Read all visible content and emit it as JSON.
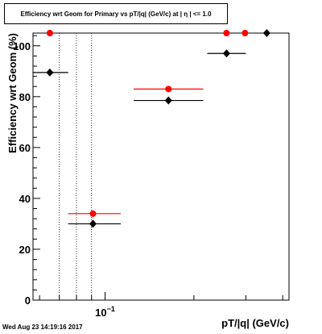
{
  "canvas": {
    "title": "Efficiency wrt Geom for Primary vs pT/|q| (GeV/c) at | η | <= 1.0",
    "timestamp": "Wed Aug 23 14:19:16 2017"
  },
  "chart_data": {
    "type": "scatter",
    "title": "Efficiency wrt Geom for Primary vs pT/|q| (GeV/c) at | η | <= 1.0",
    "xlabel": "pT/|q| (GeV/c)",
    "ylabel": "Efficiency wrt Geom (%)",
    "xscale": "log",
    "xlim": [
      0.057,
      0.42
    ],
    "ylim": [
      0,
      105
    ],
    "x_tick_labels": [
      {
        "base": "10",
        "exp": "−1",
        "value": 0.1
      }
    ],
    "x_gridlines": [
      0.07,
      0.08,
      0.09
    ],
    "y_ticks": [
      0,
      20,
      40,
      60,
      80,
      100
    ],
    "grid": false,
    "legend": "none",
    "series": [
      {
        "color": "#ff0000",
        "marker": "circle",
        "points": [
          {
            "x": 0.065,
            "y": 105,
            "xlo": 0.065,
            "xhi": 0.065
          },
          {
            "x": 0.091,
            "y": 34,
            "xlo": 0.075,
            "xhi": 0.113
          },
          {
            "x": 0.164,
            "y": 83,
            "xlo": 0.125,
            "xhi": 0.215
          },
          {
            "x": 0.258,
            "y": 105,
            "xlo": 0.258,
            "xhi": 0.258
          },
          {
            "x": 0.298,
            "y": 105,
            "xlo": 0.298,
            "xhi": 0.298
          }
        ]
      },
      {
        "color": "#000000",
        "marker": "diamond",
        "points": [
          {
            "x": 0.065,
            "y": 89.5,
            "xlo": 0.057,
            "xhi": 0.075
          },
          {
            "x": 0.091,
            "y": 30,
            "xlo": 0.075,
            "xhi": 0.113
          },
          {
            "x": 0.164,
            "y": 78.5,
            "xlo": 0.125,
            "xhi": 0.215
          },
          {
            "x": 0.258,
            "y": 97,
            "xlo": 0.222,
            "xhi": 0.3
          },
          {
            "x": 0.353,
            "y": 105,
            "xlo": 0.353,
            "xhi": 0.353
          }
        ]
      }
    ]
  }
}
